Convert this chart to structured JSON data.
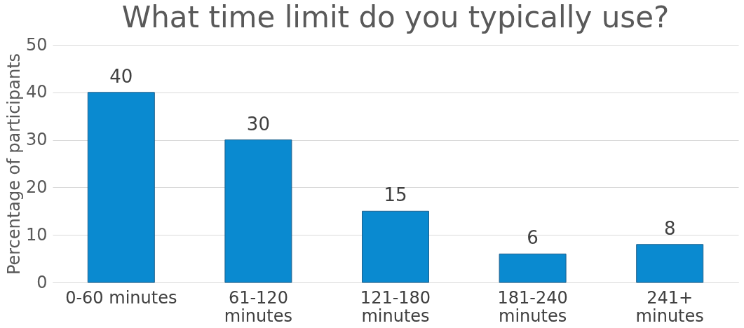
{
  "chart_data": {
    "type": "bar",
    "title": "What time limit do you typically use?",
    "ylabel": "Percentage of participants",
    "categories": [
      "0-60 minutes",
      "61-120\nminutes",
      "121-180\nminutes",
      "181-240\nminutes",
      "241+\nminutes"
    ],
    "values": [
      40,
      30,
      15,
      6,
      8
    ],
    "color": "#0a8ad0",
    "ylim": [
      0,
      50
    ],
    "yticks": [
      0,
      10,
      20,
      30,
      40,
      50
    ],
    "grid": "y",
    "data_labels": true
  }
}
